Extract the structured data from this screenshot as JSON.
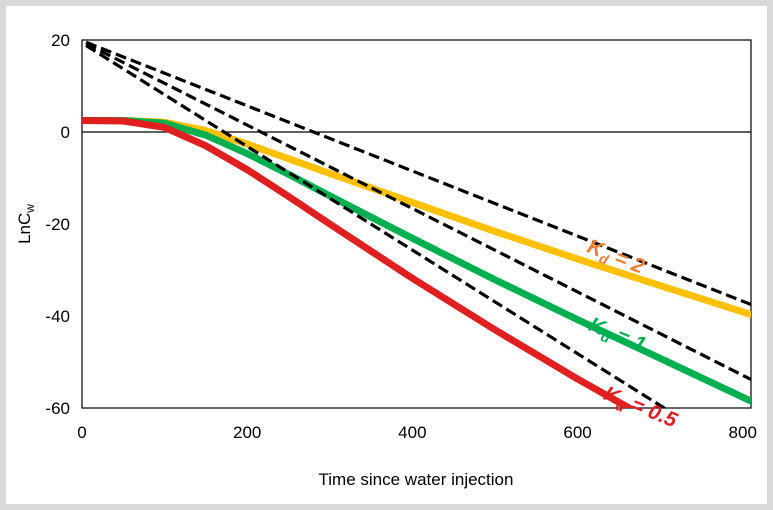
{
  "chart_data": {
    "type": "line",
    "title": "",
    "xlabel": "Time since water injection",
    "ylabel": {
      "main": "LnC",
      "sub": "w"
    },
    "xlim": [
      0,
      810
    ],
    "ylim": [
      -60,
      20
    ],
    "xticks": [
      0,
      200,
      400,
      600,
      800
    ],
    "yticks": [
      20,
      0,
      -20,
      -40,
      -60
    ],
    "grid": false,
    "legend": "none",
    "zero_line": true,
    "series": [
      {
        "color": "#ffc000",
        "style": "solid",
        "label": {
          "k": "K",
          "sub": "d",
          "rest": " = 2",
          "color": "#ed7d31",
          "at": [
            610,
            -26
          ]
        },
        "x": [
          0,
          50,
          100,
          150,
          200,
          250,
          300,
          400,
          500,
          600,
          700,
          810
        ],
        "y": [
          2.5,
          2.5,
          2.1,
          0.3,
          -2.6,
          -5.8,
          -9.0,
          -15.3,
          -21.6,
          -27.6,
          -33.4,
          -39.7
        ]
      },
      {
        "color": "#00b050",
        "style": "solid",
        "label": {
          "k": "K",
          "sub": "d",
          "rest": " = 1",
          "color": "#00b050",
          "at": [
            612,
            -43
          ]
        },
        "x": [
          0,
          50,
          100,
          150,
          200,
          250,
          300,
          400,
          500,
          600,
          700,
          810
        ],
        "y": [
          2.5,
          2.5,
          1.9,
          -0.7,
          -4.7,
          -9.2,
          -13.9,
          -23.1,
          -32.1,
          -40.8,
          -49.2,
          -58.5
        ]
      },
      {
        "color": "#e02020",
        "style": "solid",
        "label": {
          "k": "K",
          "sub": "d",
          "rest": " = 0.5",
          "color": "#e02020",
          "at": [
            630,
            -58
          ]
        },
        "x": [
          0,
          50,
          100,
          150,
          200,
          250,
          300,
          400,
          500,
          600,
          700,
          745
        ],
        "y": [
          2.5,
          2.4,
          1.0,
          -3.0,
          -8.2,
          -14.0,
          -20.0,
          -31.8,
          -43.0,
          -53.7,
          -63.8,
          -68.0
        ]
      },
      {
        "color": "#000000",
        "style": "dashed",
        "x": [
          5,
          810
        ],
        "y": [
          19.5,
          -37.5
        ]
      },
      {
        "color": "#000000",
        "style": "dashed",
        "x": [
          5,
          810
        ],
        "y": [
          19.2,
          -53.8
        ]
      },
      {
        "color": "#000000",
        "style": "dashed",
        "x": [
          5,
          745
        ],
        "y": [
          18.8,
          -64.5
        ]
      }
    ]
  }
}
